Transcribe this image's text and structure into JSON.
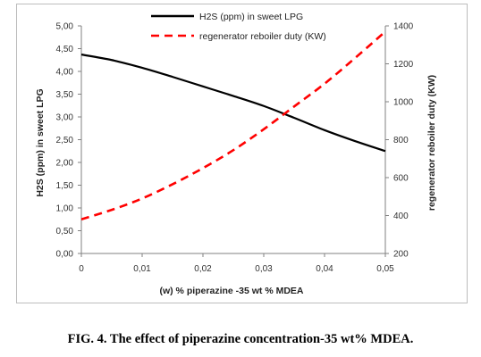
{
  "figure": {
    "caption": "FIG. 4. The effect of piperazine concentration-35 wt% MDEA."
  },
  "chart_data": {
    "type": "line",
    "xlabel": "(w) % piperazine -35 wt % MDEA",
    "ylabel_left": "H2S (ppm) in sweet LPG",
    "ylabel_right": "regenerator reboiler duty (KW)",
    "xlim": [
      0,
      0.05
    ],
    "ylim_left": [
      0,
      5
    ],
    "ylim_right": [
      200,
      1400
    ],
    "x_ticks": [
      "0",
      "0,01",
      "0,02",
      "0,03",
      "0,04",
      "0,05"
    ],
    "y_left_ticks": [
      "0,00",
      "0,50",
      "1,00",
      "1,50",
      "2,00",
      "2,50",
      "3,00",
      "3,50",
      "4,00",
      "4,50",
      "5,00"
    ],
    "y_right_ticks": [
      "200",
      "400",
      "600",
      "800",
      "1000",
      "1200",
      "1400"
    ],
    "grid": false,
    "legend_position": "top-right",
    "series": [
      {
        "name": "H2S (ppm) in sweet LPG",
        "axis": "left",
        "color": "#000000",
        "style": "solid",
        "x": [
          0,
          0.005,
          0.01,
          0.015,
          0.02,
          0.025,
          0.03,
          0.035,
          0.04,
          0.045,
          0.05
        ],
        "values": [
          4.37,
          4.25,
          4.08,
          3.88,
          3.67,
          3.46,
          3.24,
          2.98,
          2.71,
          2.47,
          2.25
        ]
      },
      {
        "name": "regenerator reboiler duty (KW)",
        "axis": "right",
        "color": "#ff0000",
        "style": "dashed",
        "x": [
          0,
          0.005,
          0.01,
          0.015,
          0.02,
          0.025,
          0.03,
          0.035,
          0.04,
          0.045,
          0.05
        ],
        "values": [
          380,
          430,
          490,
          565,
          650,
          745,
          855,
          975,
          1095,
          1230,
          1370
        ]
      }
    ]
  }
}
